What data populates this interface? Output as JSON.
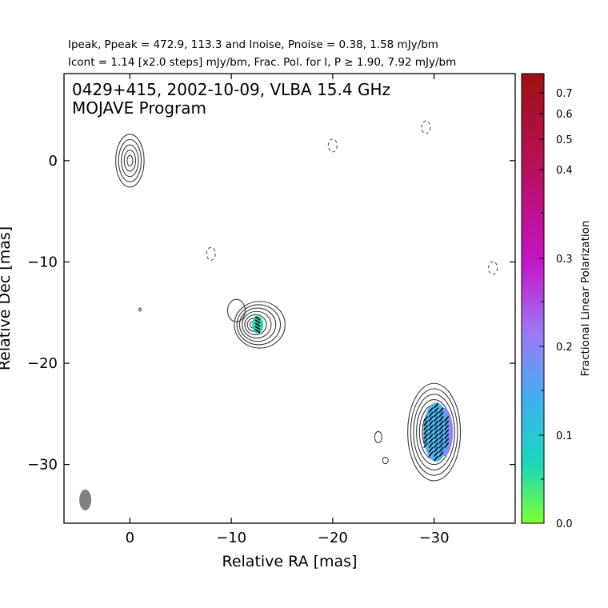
{
  "header": {
    "line1": "Ipeak, Ppeak = 472.9, 113.3 and Inoise, Pnoise = 0.38, 1.58 mJy/bm",
    "line2": "Icont = 1.14 [x2.0 steps] mJy/bm, Frac. Pol. for I, P ≥ 1.90, 7.92 mJy/bm"
  },
  "plot": {
    "title_line1": "0429+415, 2002-10-09, VLBA 15.4 GHz",
    "title_line2": "MOJAVE Program"
  },
  "colorbar": {
    "title": "Fractional Linear Polarization",
    "ticks": [
      "0.0",
      "0.1",
      "0.2",
      "0.3",
      "0.4",
      "0.5",
      "0.6",
      "0.7"
    ],
    "colors": [
      "#80ff32",
      "#1bd8b8",
      "#3fb0f0",
      "#9b7bf7",
      "#c415c8",
      "#b81060",
      "#a01010"
    ]
  },
  "chart_data": {
    "type": "contour map",
    "xlabel": "Relative RA [mas]",
    "ylabel": "Relative Dec [mas]",
    "xlim": [
      6.5,
      -38
    ],
    "ylim": [
      -35.8,
      8.6
    ],
    "xticks": [
      0,
      -10,
      -20,
      -30
    ],
    "yticks": [
      0,
      -10,
      -20,
      -30
    ],
    "xtick_labels": [
      "0",
      "−10",
      "−20",
      "−30"
    ],
    "ytick_labels": [
      "0",
      "−10",
      "−20",
      "−30"
    ],
    "peak_intensity_mJy_bm": 472.9,
    "peak_polarized_mJy_bm": 113.3,
    "noise_I_mJy_bm": 0.38,
    "noise_P_mJy_bm": 1.58,
    "lowest_contour_mJy_bm": 1.14,
    "contour_step_factor": 2.0,
    "components": [
      {
        "x": 0.0,
        "y": 0.0,
        "rx": 1.4,
        "ry": 2.6,
        "levels": 5
      },
      {
        "x": -12.8,
        "y": -16.2,
        "rx": 2.5,
        "ry": 2.3,
        "levels": 7
      },
      {
        "x": -30.0,
        "y": -26.8,
        "rx": 2.6,
        "ry": 4.8,
        "levels": 9
      }
    ],
    "negative_contours": [
      {
        "x": -20.0,
        "y": 1.5
      },
      {
        "x": -29.2,
        "y": 3.3
      },
      {
        "x": -8.0,
        "y": -9.2
      },
      {
        "x": -35.8,
        "y": -10.6
      }
    ],
    "polarization_regions": [
      {
        "x": -12.6,
        "y": -16.2,
        "frac_pol": 0.15
      },
      {
        "x": -30.2,
        "y": -26.8,
        "frac_pol": 0.2,
        "frac_pol_edge": 0.4
      }
    ],
    "beam": {
      "x": 4.4,
      "y": -33.5
    }
  }
}
